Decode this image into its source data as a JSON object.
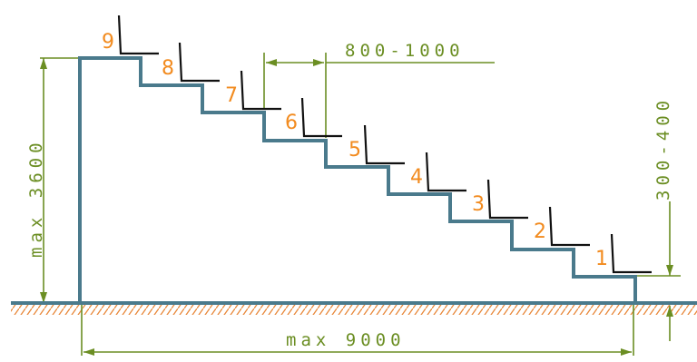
{
  "colors": {
    "stair": "#4a7a8c",
    "dimension": "#6b8e23",
    "seat": "#111111",
    "numbers": "#f28b1f",
    "ground_hatch": "#e8883a"
  },
  "dimensions": {
    "max_height": "max 3600",
    "max_length": "max 9000",
    "row_spacing": "800-1000",
    "step_height": "300-400"
  },
  "rows": [
    "1",
    "2",
    "3",
    "4",
    "5",
    "6",
    "7",
    "8",
    "9"
  ]
}
